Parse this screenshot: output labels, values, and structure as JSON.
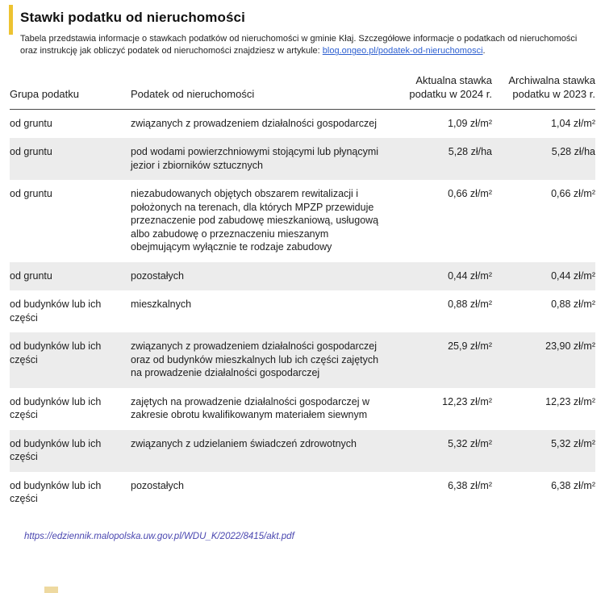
{
  "colors": {
    "accent": "#edc331",
    "link": "#2d5fd0",
    "source_link": "#4a47b0",
    "row_alt": "#ececec",
    "cropped": "#eed9a0"
  },
  "page": {
    "title": "Stawki podatku od nieruchomości",
    "intro_before_link": "Tabela przedstawia informacje o stawkach podatków od nieruchomości w gminie Kłaj. Szczegółowe informacje o podatkach od nieruchomości oraz instrukcję jak obliczyć podatek od nieruchomości znajdziesz w artykule: ",
    "intro_link": "blog.ongeo.pl/podatek-od-nieruchomosci",
    "intro_after_link": "."
  },
  "table": {
    "columns": [
      "Grupa podatku",
      "Podatek od nieruchomości",
      "Aktualna stawka podatku w 2024 r.",
      "Archiwalna stawka podatku w 2023 r."
    ],
    "rows": [
      {
        "group": "od gruntu",
        "description": "związanych z prowadzeniem działalności gospodarczej",
        "rate_2024": "1,09 zł/m²",
        "rate_2023": "1,04 zł/m²"
      },
      {
        "group": "od gruntu",
        "description": "pod wodami powierzchniowymi stojącymi lub płynącymi jezior i zbiorników sztucznych",
        "rate_2024": "5,28 zł/ha",
        "rate_2023": "5,28 zł/ha"
      },
      {
        "group": "od gruntu",
        "description": "niezabudowanych objętych obszarem rewitalizacji i położonych na terenach, dla których MPZP przewiduje przeznaczenie pod zabudowę mieszkaniową, usługową albo zabudowę o przeznaczeniu mieszanym obejmującym wyłącznie te rodzaje zabudowy",
        "rate_2024": "0,66 zł/m²",
        "rate_2023": "0,66 zł/m²"
      },
      {
        "group": "od gruntu",
        "description": "pozostałych",
        "rate_2024": "0,44 zł/m²",
        "rate_2023": "0,44 zł/m²"
      },
      {
        "group": "od budynków lub ich części",
        "description": "mieszkalnych",
        "rate_2024": "0,88 zł/m²",
        "rate_2023": "0,88 zł/m²"
      },
      {
        "group": "od budynków lub ich części",
        "description": "związanych z prowadzeniem działalności gospodarczej oraz od budynków mieszkalnych lub ich części zajętych na prowadzenie działalności gospodarczej",
        "rate_2024": "25,9 zł/m²",
        "rate_2023": "23,90 zł/m²"
      },
      {
        "group": "od budynków lub ich części",
        "description": "zajętych na prowadzenie działalności gospodarczej w zakresie obrotu kwalifikowanym materiałem siewnym",
        "rate_2024": "12,23 zł/m²",
        "rate_2023": "12,23 zł/m²"
      },
      {
        "group": "od budynków lub ich części",
        "description": "związanych z udzielaniem świadczeń zdrowotnych",
        "rate_2024": "5,32 zł/m²",
        "rate_2023": "5,32 zł/m²"
      },
      {
        "group": "od budynków lub ich części",
        "description": "pozostałych",
        "rate_2024": "6,38 zł/m²",
        "rate_2023": "6,38 zł/m²"
      }
    ]
  },
  "footer": {
    "source_link": "https://edziennik.malopolska.uw.gov.pl/WDU_K/2022/8415/akt.pdf"
  }
}
